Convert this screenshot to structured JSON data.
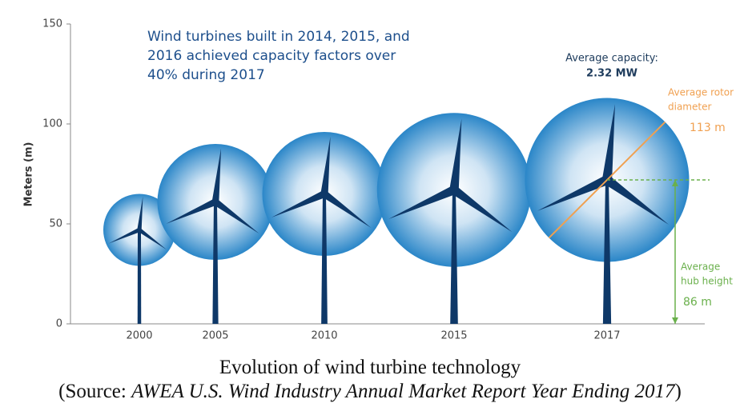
{
  "chart_data": {
    "type": "bubble",
    "y_label": "Meters (m)",
    "ylim": [
      0,
      150
    ],
    "yticks": [
      0,
      50,
      100,
      150
    ],
    "categories": [
      "2000",
      "2005",
      "2010",
      "2015",
      "2017"
    ],
    "values": [
      47,
      61,
      65,
      67,
      72
    ],
    "sizes": [
      36,
      58,
      62,
      77,
      82
    ],
    "color": "#2a86c8",
    "tower_color": "#0e3868",
    "note_lines": [
      "Wind turbines built in 2014, 2015, and",
      "2016 achieved capacity factors over",
      "40% during 2017"
    ],
    "capacity_label": "Average capacity:",
    "capacity_value": "2.32 MW",
    "rotor_label": [
      "Average rotor",
      "diameter"
    ],
    "rotor_value": "113 m",
    "hub_label": [
      "Average",
      "hub height"
    ],
    "hub_value": "86 m"
  },
  "caption": "Evolution of wind turbine technology",
  "source": {
    "prefix": "(Source:",
    "title": "AWEA U.S. Wind Industry Annual Market Report Year Ending 2017",
    "suffix": ")"
  }
}
